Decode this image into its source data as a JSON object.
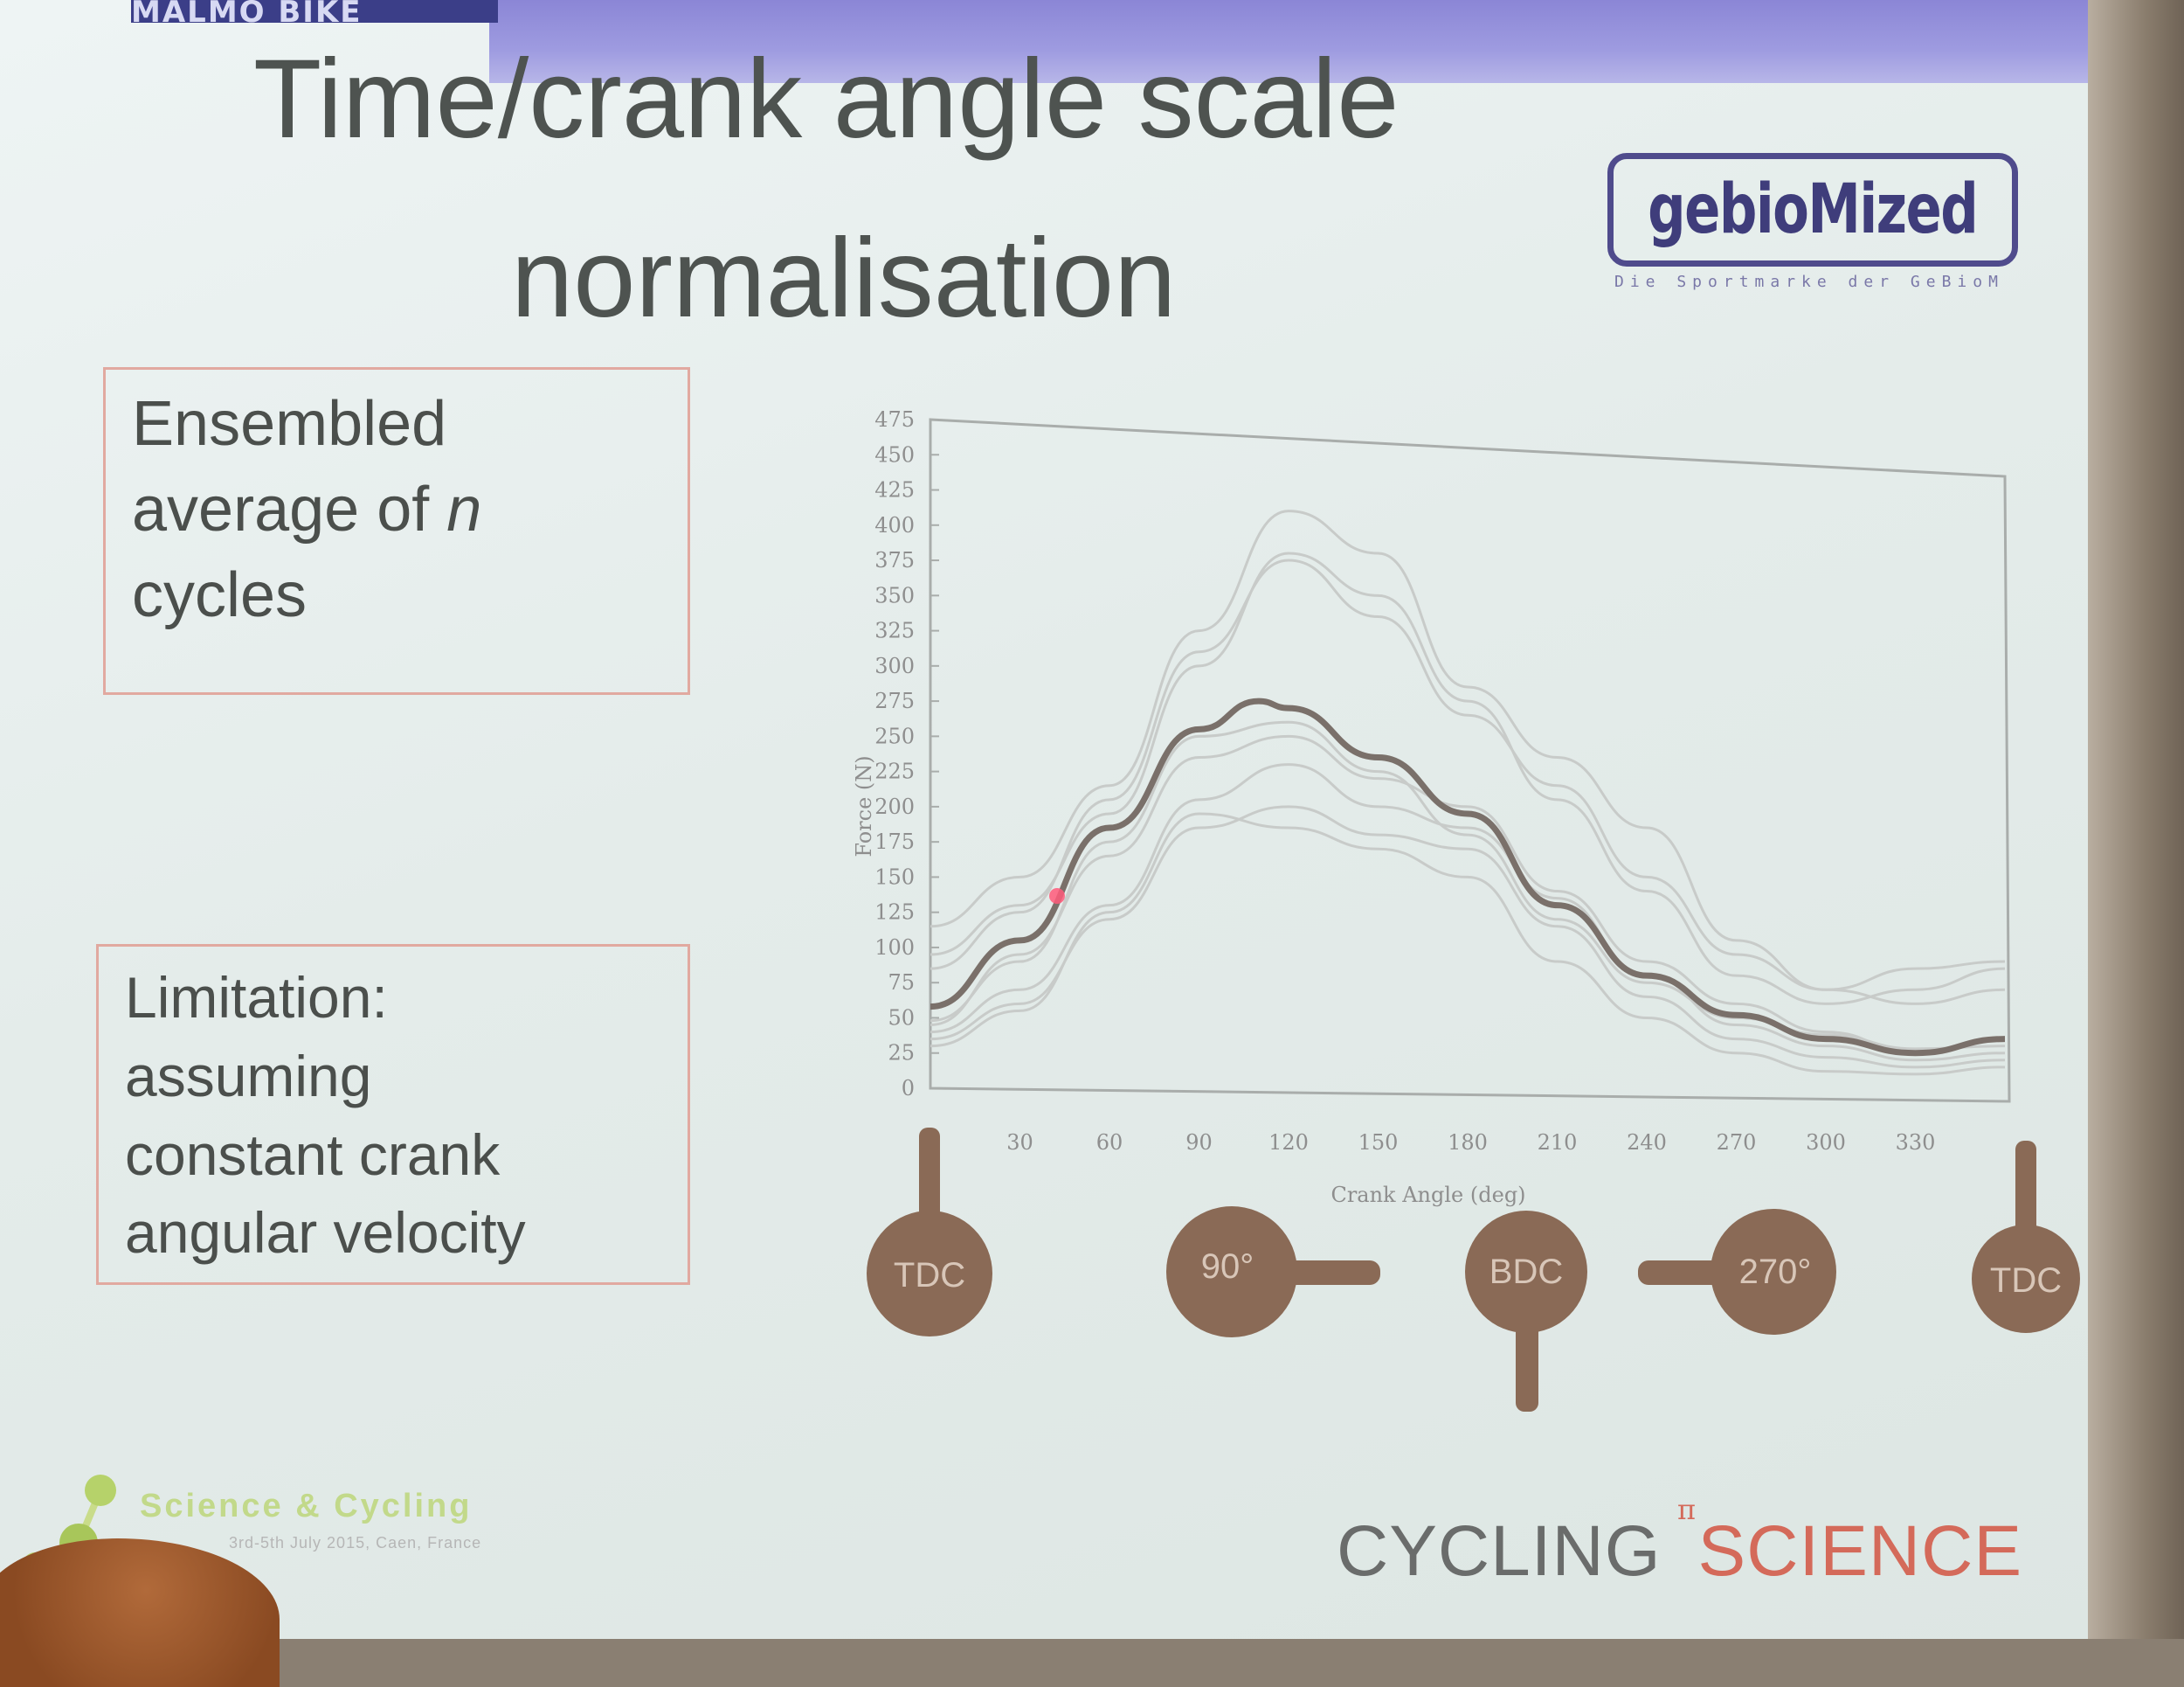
{
  "header": {
    "top_label": "MALMO BIKE",
    "title_line_1": "Time/crank angle scale",
    "title_line_2": "normalisation"
  },
  "logo_gebio": {
    "name": "gebioMized",
    "tagline": "Die Sportmarke der GeBioM"
  },
  "box_ensembled": {
    "line1": "Ensembled",
    "line2_pre": "average of ",
    "line2_ital": "n",
    "line3": "cycles"
  },
  "box_limitation": {
    "line1": "Limitation:",
    "line2": "assuming",
    "line3": "constant crank",
    "line4": "angular velocity"
  },
  "chart_data": {
    "type": "line",
    "ylabel": "Force (N)",
    "xlabel": "Crank Angle (deg)",
    "y_ticks": [
      "475",
      "450",
      "425",
      "400",
      "375",
      "350",
      "325",
      "300",
      "275",
      "250",
      "225",
      "200",
      "175",
      "150",
      "125",
      "100",
      "75",
      "50",
      "25",
      "0"
    ],
    "x_ticks": [
      "30",
      "60",
      "90",
      "120",
      "150",
      "180",
      "210",
      "240",
      "270",
      "300",
      "330"
    ],
    "xlim": [
      0,
      360
    ],
    "ylim": [
      0,
      475
    ],
    "grid": false,
    "mean_series": {
      "name": "mean",
      "x": [
        0,
        30,
        60,
        90,
        110,
        120,
        150,
        180,
        210,
        240,
        270,
        300,
        330,
        360
      ],
      "y": [
        58,
        105,
        185,
        255,
        275,
        270,
        235,
        195,
        130,
        80,
        52,
        35,
        25,
        35
      ]
    },
    "series": [
      {
        "x": [
          0,
          30,
          60,
          90,
          120,
          150,
          180,
          210,
          240,
          270,
          300,
          330,
          360
        ],
        "y": [
          115,
          150,
          215,
          325,
          410,
          380,
          285,
          235,
          185,
          105,
          70,
          85,
          90
        ]
      },
      {
        "x": [
          0,
          30,
          60,
          90,
          120,
          150,
          180,
          210,
          240,
          270,
          300,
          330,
          360
        ],
        "y": [
          95,
          130,
          195,
          300,
          380,
          350,
          275,
          205,
          140,
          80,
          60,
          70,
          85
        ]
      },
      {
        "x": [
          0,
          30,
          60,
          90,
          120,
          150,
          180,
          210,
          240,
          270,
          300,
          330,
          360
        ],
        "y": [
          85,
          125,
          205,
          310,
          375,
          335,
          265,
          215,
          150,
          95,
          70,
          60,
          70
        ]
      },
      {
        "x": [
          0,
          30,
          60,
          90,
          120,
          150,
          180,
          210,
          240,
          270,
          300,
          330,
          360
        ],
        "y": [
          48,
          90,
          175,
          250,
          260,
          225,
          180,
          120,
          75,
          50,
          38,
          28,
          30
        ]
      },
      {
        "x": [
          0,
          30,
          60,
          90,
          120,
          150,
          180,
          210,
          240,
          270,
          300,
          330,
          360
        ],
        "y": [
          40,
          70,
          130,
          205,
          230,
          200,
          185,
          135,
          80,
          45,
          30,
          20,
          25
        ]
      },
      {
        "x": [
          0,
          30,
          60,
          90,
          120,
          150,
          180,
          210,
          240,
          270,
          300,
          330,
          360
        ],
        "y": [
          35,
          60,
          120,
          185,
          200,
          180,
          170,
          115,
          65,
          35,
          22,
          15,
          20
        ]
      },
      {
        "x": [
          0,
          30,
          60,
          90,
          120,
          150,
          180,
          210,
          240,
          270,
          300,
          330,
          360
        ],
        "y": [
          30,
          55,
          125,
          195,
          185,
          170,
          150,
          90,
          50,
          25,
          12,
          10,
          15
        ]
      },
      {
        "x": [
          0,
          30,
          60,
          90,
          120,
          150,
          180,
          210,
          240,
          270,
          300,
          330,
          360
        ],
        "y": [
          45,
          95,
          165,
          235,
          250,
          220,
          200,
          140,
          90,
          60,
          40,
          25,
          35
        ]
      }
    ]
  },
  "crank_positions": [
    {
      "label": "TDC"
    },
    {
      "label": "90°"
    },
    {
      "label": "BDC"
    },
    {
      "label": "270°"
    },
    {
      "label": "TDC"
    }
  ],
  "footer": {
    "science_cycling": "Science & Cycling",
    "science_cycling_sub": "3rd-5th July 2015, Caen, France",
    "cycling_word": "CYCLING",
    "science_word": "SCIENCE",
    "pi_symbol": "π"
  },
  "colors": {
    "background": "#e4ecea",
    "band": "#9e9be0",
    "title_text": "#4e5350",
    "box_border": "#e1a9a0",
    "mean_line": "#7a706a",
    "trial_line": "#c8cbc9",
    "crank_brown": "#8a6a56",
    "cycling_red": "#d46a5a"
  }
}
